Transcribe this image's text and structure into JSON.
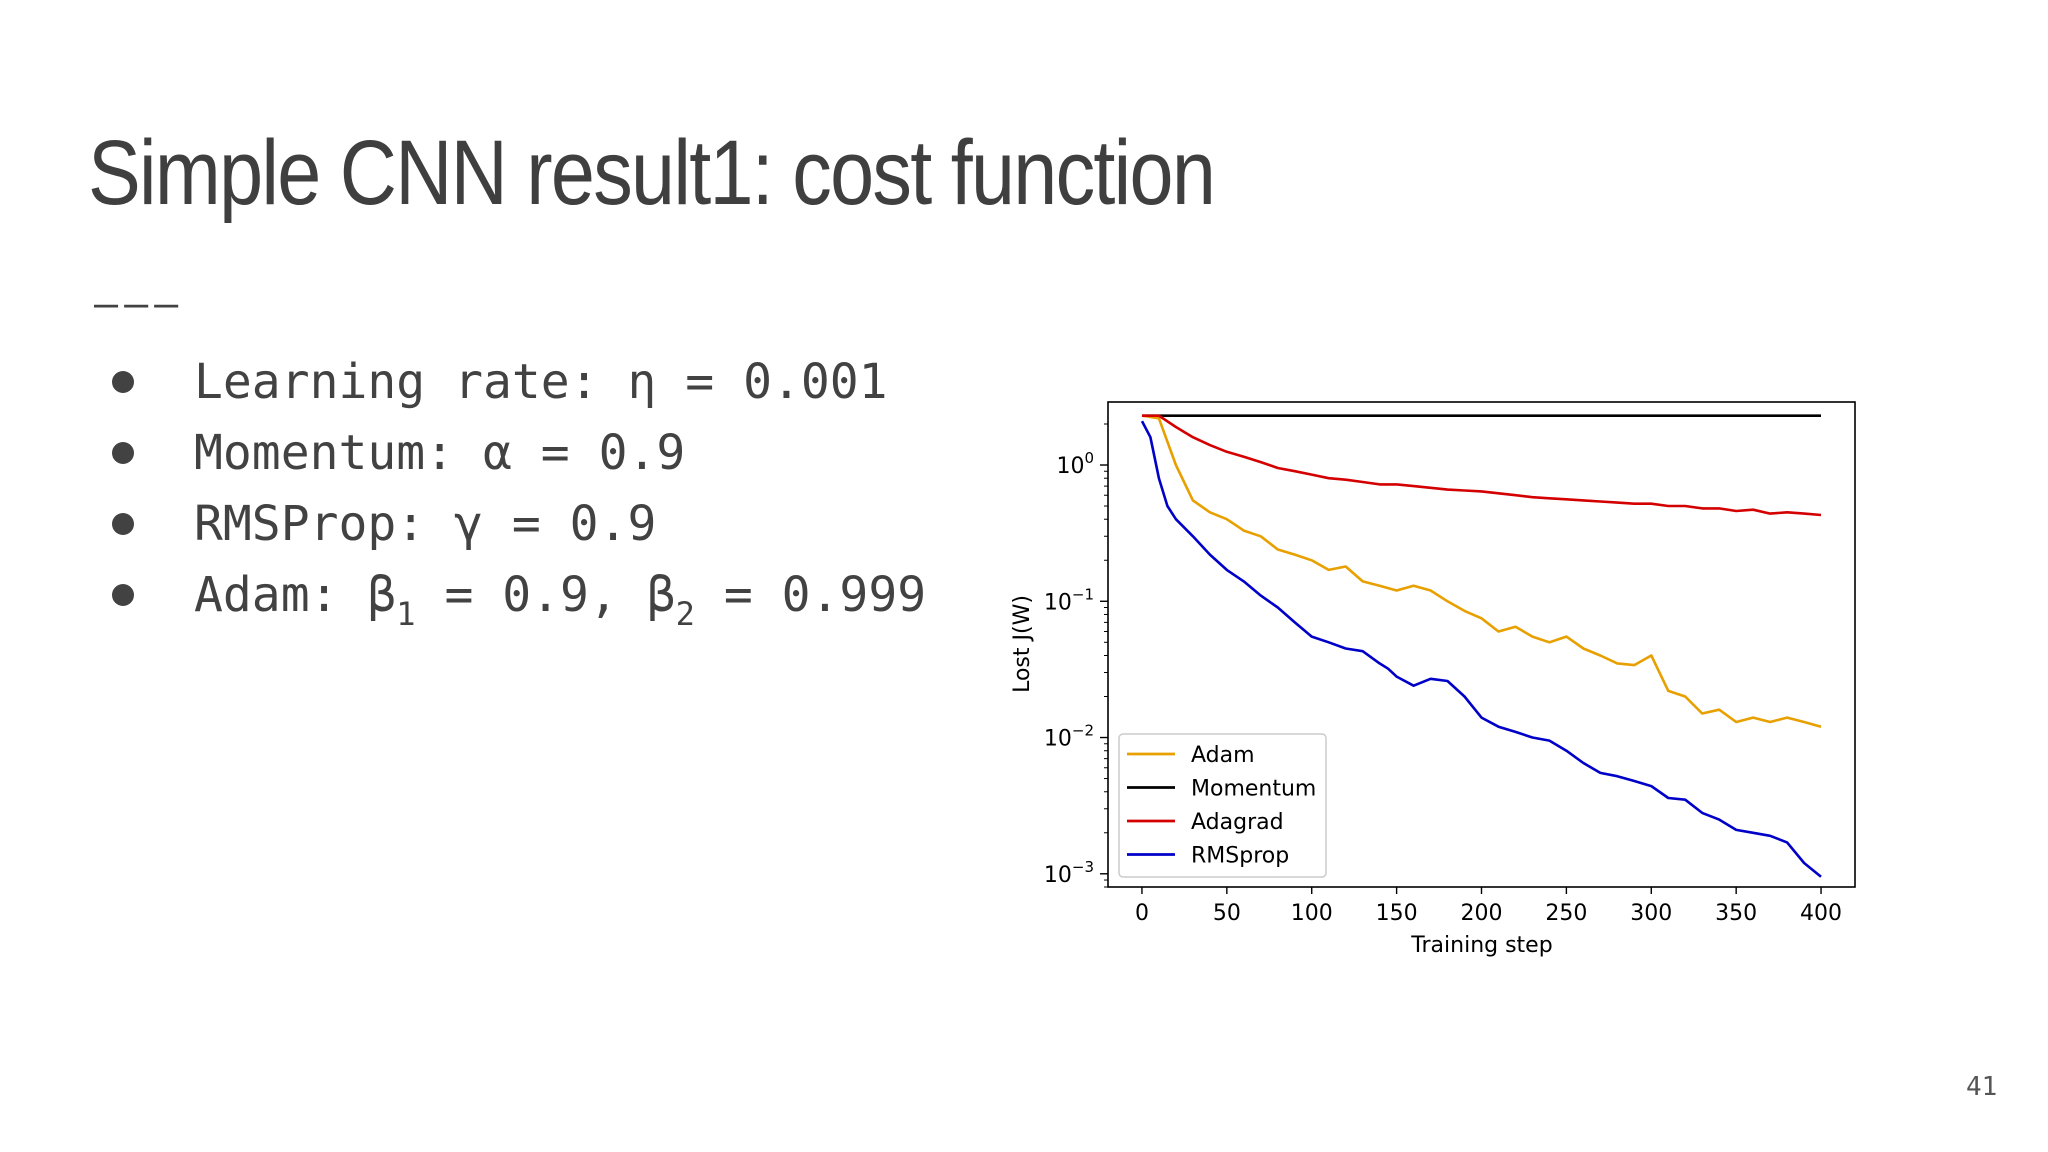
{
  "slide": {
    "title": "Simple CNN result1:  cost function",
    "rule": "———",
    "bullets": [
      {
        "prefix": "Learning rate: η = 0.001"
      },
      {
        "prefix": "Momentum: α = 0.9"
      },
      {
        "prefix": "RMSProp: γ = 0.9"
      },
      {
        "prefix": "Adam: β",
        "sub1": "1",
        "mid": " = 0.9, β",
        "sub2": "2",
        "suffix": " = 0.999"
      }
    ],
    "page_number": "41"
  },
  "chart_data": {
    "type": "line",
    "title": "",
    "xlabel": "Training step",
    "ylabel": "Lost J(W)",
    "xlim": [
      -20,
      420
    ],
    "ylim": [
      0.0008,
      2.9
    ],
    "yscale": "log",
    "xticks": [
      0,
      50,
      100,
      150,
      200,
      250,
      300,
      350,
      400
    ],
    "yticks": [
      {
        "value": 0.001,
        "base": "10",
        "exp": "−3"
      },
      {
        "value": 0.01,
        "base": "10",
        "exp": "−2"
      },
      {
        "value": 0.1,
        "base": "10",
        "exp": "−1"
      },
      {
        "value": 1,
        "base": "10",
        "exp": "0"
      }
    ],
    "legend_position": "lower-left",
    "series": [
      {
        "name": "Adam",
        "color": "#e8a000",
        "points": [
          [
            0,
            2.3
          ],
          [
            10,
            2.2
          ],
          [
            20,
            1.0
          ],
          [
            30,
            0.55
          ],
          [
            40,
            0.45
          ],
          [
            50,
            0.4
          ],
          [
            60,
            0.33
          ],
          [
            70,
            0.3
          ],
          [
            80,
            0.24
          ],
          [
            90,
            0.22
          ],
          [
            100,
            0.2
          ],
          [
            110,
            0.17
          ],
          [
            120,
            0.18
          ],
          [
            130,
            0.14
          ],
          [
            140,
            0.13
          ],
          [
            150,
            0.12
          ],
          [
            160,
            0.13
          ],
          [
            170,
            0.12
          ],
          [
            180,
            0.1
          ],
          [
            190,
            0.085
          ],
          [
            200,
            0.075
          ],
          [
            210,
            0.06
          ],
          [
            220,
            0.065
          ],
          [
            230,
            0.055
          ],
          [
            240,
            0.05
          ],
          [
            250,
            0.055
          ],
          [
            260,
            0.045
          ],
          [
            270,
            0.04
          ],
          [
            280,
            0.035
          ],
          [
            290,
            0.034
          ],
          [
            300,
            0.04
          ],
          [
            310,
            0.022
          ],
          [
            320,
            0.02
          ],
          [
            330,
            0.015
          ],
          [
            340,
            0.016
          ],
          [
            350,
            0.013
          ],
          [
            360,
            0.014
          ],
          [
            370,
            0.013
          ],
          [
            380,
            0.014
          ],
          [
            390,
            0.013
          ],
          [
            400,
            0.012
          ]
        ]
      },
      {
        "name": "Momentum",
        "color": "#000000",
        "points": [
          [
            0,
            2.3
          ],
          [
            100,
            2.3
          ],
          [
            200,
            2.3
          ],
          [
            300,
            2.3
          ],
          [
            400,
            2.3
          ]
        ]
      },
      {
        "name": "Adagrad",
        "color": "#d40000",
        "points": [
          [
            0,
            2.3
          ],
          [
            10,
            2.3
          ],
          [
            20,
            1.9
          ],
          [
            30,
            1.6
          ],
          [
            40,
            1.4
          ],
          [
            50,
            1.25
          ],
          [
            60,
            1.15
          ],
          [
            70,
            1.05
          ],
          [
            80,
            0.95
          ],
          [
            90,
            0.9
          ],
          [
            100,
            0.85
          ],
          [
            110,
            0.8
          ],
          [
            120,
            0.78
          ],
          [
            130,
            0.75
          ],
          [
            140,
            0.72
          ],
          [
            150,
            0.72
          ],
          [
            160,
            0.7
          ],
          [
            170,
            0.68
          ],
          [
            180,
            0.66
          ],
          [
            190,
            0.65
          ],
          [
            200,
            0.64
          ],
          [
            210,
            0.62
          ],
          [
            220,
            0.6
          ],
          [
            230,
            0.58
          ],
          [
            240,
            0.57
          ],
          [
            250,
            0.56
          ],
          [
            260,
            0.55
          ],
          [
            270,
            0.54
          ],
          [
            280,
            0.53
          ],
          [
            290,
            0.52
          ],
          [
            300,
            0.52
          ],
          [
            310,
            0.5
          ],
          [
            320,
            0.5
          ],
          [
            330,
            0.48
          ],
          [
            340,
            0.48
          ],
          [
            350,
            0.46
          ],
          [
            360,
            0.47
          ],
          [
            370,
            0.44
          ],
          [
            380,
            0.45
          ],
          [
            390,
            0.44
          ],
          [
            400,
            0.43
          ]
        ]
      },
      {
        "name": "RMSprop",
        "color": "#0000c8",
        "points": [
          [
            0,
            2.1
          ],
          [
            5,
            1.6
          ],
          [
            10,
            0.8
          ],
          [
            15,
            0.5
          ],
          [
            20,
            0.4
          ],
          [
            30,
            0.3
          ],
          [
            40,
            0.22
          ],
          [
            50,
            0.17
          ],
          [
            60,
            0.14
          ],
          [
            70,
            0.11
          ],
          [
            80,
            0.09
          ],
          [
            90,
            0.07
          ],
          [
            100,
            0.055
          ],
          [
            110,
            0.05
          ],
          [
            120,
            0.045
          ],
          [
            130,
            0.043
          ],
          [
            140,
            0.035
          ],
          [
            145,
            0.032
          ],
          [
            150,
            0.028
          ],
          [
            160,
            0.024
          ],
          [
            170,
            0.027
          ],
          [
            180,
            0.026
          ],
          [
            190,
            0.02
          ],
          [
            200,
            0.014
          ],
          [
            210,
            0.012
          ],
          [
            220,
            0.011
          ],
          [
            230,
            0.01
          ],
          [
            240,
            0.0095
          ],
          [
            250,
            0.008
          ],
          [
            260,
            0.0065
          ],
          [
            270,
            0.0055
          ],
          [
            280,
            0.0052
          ],
          [
            290,
            0.0048
          ],
          [
            300,
            0.0044
          ],
          [
            310,
            0.0036
          ],
          [
            320,
            0.0035
          ],
          [
            330,
            0.0028
          ],
          [
            340,
            0.0025
          ],
          [
            350,
            0.0021
          ],
          [
            360,
            0.002
          ],
          [
            370,
            0.0019
          ],
          [
            380,
            0.0017
          ],
          [
            390,
            0.0012
          ],
          [
            400,
            0.00095
          ]
        ]
      }
    ]
  }
}
